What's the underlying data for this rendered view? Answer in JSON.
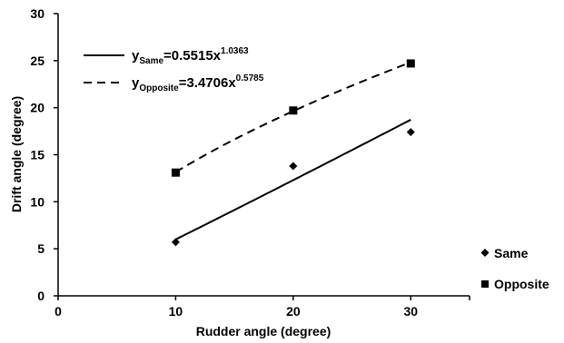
{
  "chart_data": {
    "type": "scatter",
    "xlabel": "Rudder angle (degree)",
    "ylabel": "Drift angle (degree)",
    "xlim": [
      0,
      35
    ],
    "ylim": [
      0,
      30
    ],
    "x_ticks": [
      0,
      10,
      20,
      30
    ],
    "y_ticks": [
      0,
      5,
      10,
      15,
      20,
      25,
      30
    ],
    "grid": false,
    "legend": "bottom-right",
    "series": [
      {
        "name": "Same",
        "marker": "diamond",
        "x": [
          10,
          20,
          30
        ],
        "y": [
          5.7,
          13.8,
          17.4
        ],
        "fit": {
          "type": "power",
          "a": 0.5515,
          "b": 1.0363,
          "line": "solid"
        }
      },
      {
        "name": "Opposite",
        "marker": "square",
        "x": [
          10,
          20,
          30
        ],
        "y": [
          13.1,
          19.7,
          24.7
        ],
        "fit": {
          "type": "power",
          "a": 3.4706,
          "b": 0.5785,
          "line": "dashed"
        }
      }
    ],
    "equations": [
      {
        "prefix": "y",
        "subscript": "Same",
        "body": "=0.5515x",
        "exponent": "1.0363",
        "line": "solid"
      },
      {
        "prefix": "y",
        "subscript": "Opposite",
        "body": "=3.4706x",
        "exponent": "0.5785",
        "line": "dashed"
      }
    ]
  }
}
